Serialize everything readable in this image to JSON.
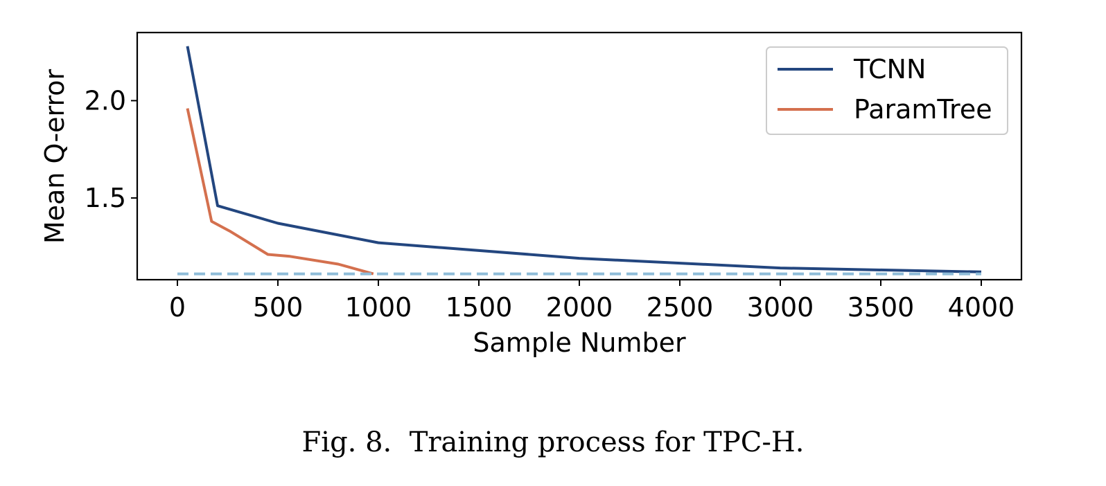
{
  "chart_data": {
    "type": "line",
    "xlabel": "Sample Number",
    "ylabel": "Mean Q-error",
    "xlim": [
      -200,
      4200
    ],
    "ylim": [
      1.08,
      2.35
    ],
    "xticks": [
      0,
      500,
      1000,
      1500,
      2000,
      2500,
      3000,
      3500,
      4000
    ],
    "xtick_labels": [
      "0",
      "500",
      "1000",
      "1500",
      "2000",
      "2500",
      "3000",
      "3500",
      "4000"
    ],
    "yticks": [
      1.5,
      2.0
    ],
    "ytick_labels": [
      "1.5",
      "2.0"
    ],
    "grid": false,
    "legend_position": "top-right",
    "series": [
      {
        "name": "TCNN",
        "color": "#23467f",
        "x": [
          50,
          200,
          500,
          1000,
          2000,
          3000,
          4000
        ],
        "y": [
          2.28,
          1.46,
          1.37,
          1.27,
          1.19,
          1.14,
          1.12
        ]
      },
      {
        "name": "ParamTree",
        "color": "#d4704e",
        "x": [
          50,
          170,
          260,
          450,
          560,
          800,
          975
        ],
        "y": [
          1.96,
          1.38,
          1.33,
          1.21,
          1.2,
          1.16,
          1.11
        ]
      },
      {
        "name": "",
        "color": "#8fbcd8",
        "dashed": true,
        "x": [
          0,
          4000
        ],
        "y": [
          1.11,
          1.11
        ]
      }
    ]
  },
  "caption": "Fig. 8.  Training process for TPC-H."
}
